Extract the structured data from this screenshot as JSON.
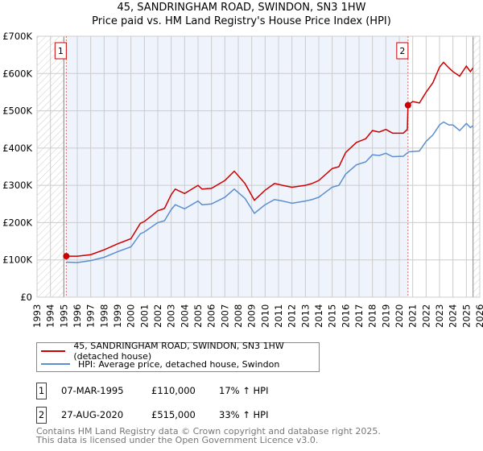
{
  "title": "45, SANDRINGHAM ROAD, SWINDON, SN3 1HW",
  "subtitle": "Price paid vs. HM Land Registry's House Price Index (HPI)",
  "chart_data": {
    "type": "line",
    "title": "45, SANDRINGHAM ROAD, SWINDON, SN3 1HW",
    "subtitle": "Price paid vs. HM Land Registry's House Price Index (HPI)",
    "xlim": [
      1993,
      2026
    ],
    "ylim": [
      0,
      700000
    ],
    "x_ticks": [
      "1993",
      "1994",
      "1995",
      "1996",
      "1997",
      "1998",
      "1999",
      "2000",
      "2001",
      "2002",
      "2003",
      "2004",
      "2005",
      "2006",
      "2007",
      "2008",
      "2009",
      "2010",
      "2011",
      "2012",
      "2013",
      "2014",
      "2015",
      "2016",
      "2017",
      "2018",
      "2019",
      "2020",
      "2021",
      "2022",
      "2023",
      "2024",
      "2025",
      "2026"
    ],
    "y_ticks": [
      {
        "v": 0,
        "l": "£0"
      },
      {
        "v": 100000,
        "l": "£100K"
      },
      {
        "v": 200000,
        "l": "£200K"
      },
      {
        "v": 300000,
        "l": "£300K"
      },
      {
        "v": 400000,
        "l": "£400K"
      },
      {
        "v": 500000,
        "l": "£500K"
      },
      {
        "v": 600000,
        "l": "£600K"
      },
      {
        "v": 700000,
        "l": "£700K"
      }
    ],
    "grid": true,
    "shaded_range": [
      1995.18,
      2020.65
    ],
    "data_end": 2025.5,
    "series": [
      {
        "name": "45, SANDRINGHAM ROAD, SWINDON, SN3 1HW (detached house)",
        "color": "#cc0000",
        "x": [
          1995.18,
          1996,
          1997,
          1998,
          1999,
          2000,
          2000.7,
          2001,
          2002,
          2002.5,
          2003,
          2003.3,
          2004,
          2005,
          2005.3,
          2006,
          2007,
          2007.7,
          2008.5,
          2009.2,
          2010,
          2010.7,
          2011.3,
          2012,
          2013,
          2013.5,
          2014,
          2015,
          2015.5,
          2016,
          2016.8,
          2017.5,
          2018,
          2018.5,
          2019,
          2019.5,
          2020.3,
          2020.6,
          2020.65,
          2021,
          2021.5,
          2022,
          2022.5,
          2023,
          2023.3,
          2023.7,
          2024,
          2024.5,
          2025,
          2025.3,
          2025.5
        ],
        "y": [
          110000,
          110000,
          114000,
          127000,
          143000,
          157000,
          198000,
          203000,
          232000,
          238000,
          275000,
          290000,
          278000,
          300000,
          290000,
          292000,
          313000,
          338000,
          305000,
          260000,
          287000,
          305000,
          300000,
          295000,
          300000,
          305000,
          313000,
          345000,
          350000,
          388000,
          415000,
          425000,
          447000,
          443000,
          450000,
          440000,
          440000,
          450000,
          515000,
          525000,
          521000,
          550000,
          575000,
          617000,
          630000,
          615000,
          605000,
          593000,
          620000,
          605000,
          615000
        ]
      },
      {
        "name": "HPI: Average price, detached house, Swindon",
        "color": "#5b8fd0",
        "x": [
          1995.18,
          1996,
          1997,
          1998,
          1999,
          2000,
          2000.7,
          2001,
          2002,
          2002.5,
          2003,
          2003.3,
          2004,
          2005,
          2005.3,
          2006,
          2007,
          2007.7,
          2008.5,
          2009.2,
          2010,
          2010.7,
          2011.3,
          2012,
          2013,
          2013.5,
          2014,
          2015,
          2015.5,
          2016,
          2016.8,
          2017.5,
          2018,
          2018.5,
          2019,
          2019.5,
          2020.3,
          2020.7,
          2021.5,
          2022,
          2022.5,
          2023,
          2023.3,
          2023.7,
          2024,
          2024.5,
          2025,
          2025.3,
          2025.5
        ],
        "y": [
          94000,
          93000,
          98000,
          107000,
          122000,
          135000,
          170000,
          175000,
          200000,
          205000,
          235000,
          248000,
          237000,
          258000,
          248000,
          250000,
          268000,
          290000,
          265000,
          225000,
          248000,
          262000,
          258000,
          252000,
          258000,
          262000,
          268000,
          295000,
          300000,
          330000,
          355000,
          363000,
          382000,
          380000,
          386000,
          377000,
          378000,
          390000,
          392000,
          418000,
          435000,
          462000,
          470000,
          462000,
          462000,
          447000,
          466000,
          455000,
          460000
        ]
      }
    ],
    "annotations": [
      {
        "label": "1",
        "x": 1995.18,
        "y": 110000
      },
      {
        "label": "2",
        "x": 2020.65,
        "y": 515000
      }
    ]
  },
  "legend": {
    "red": "45, SANDRINGHAM ROAD, SWINDON, SN3 1HW (detached house)",
    "blue": "HPI: Average price, detached house, Swindon"
  },
  "sales": [
    {
      "n": "1",
      "date": "07-MAR-1995",
      "price": "£110,000",
      "hpi": "17% ↑ HPI"
    },
    {
      "n": "2",
      "date": "27-AUG-2020",
      "price": "£515,000",
      "hpi": "33% ↑ HPI"
    }
  ],
  "footer": [
    "Contains HM Land Registry data © Crown copyright and database right 2025.",
    "This data is licensed under the Open Government Licence v3.0."
  ]
}
